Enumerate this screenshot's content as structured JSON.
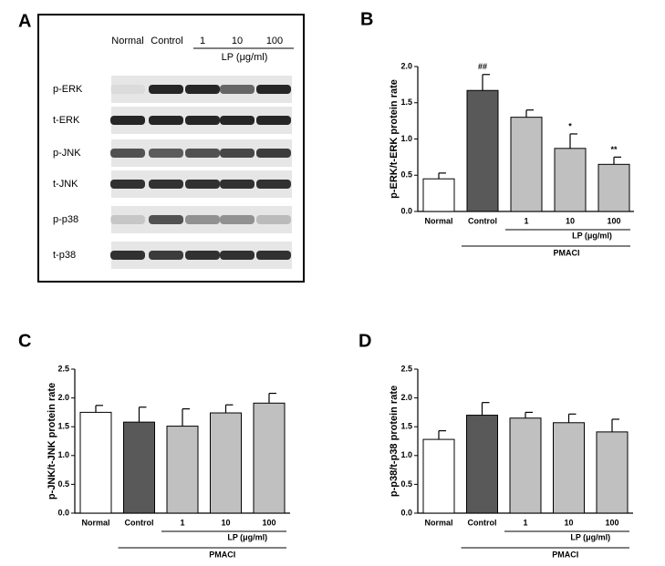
{
  "blot": {
    "panel": "A",
    "lanes": [
      "Normal",
      "Control",
      "1",
      "10",
      "100"
    ],
    "lane_group": "LP (μg/ml)",
    "rows": [
      "p-ERK",
      "t-ERK",
      "p-JNK",
      "t-JNK",
      "p-p38",
      "t-p38"
    ]
  },
  "chart_data": [
    {
      "type": "bar",
      "panel": "B",
      "ylabel": "p-ERK/t-ERK protein rate",
      "categories": [
        "Normal",
        "Control",
        "1",
        "10",
        "100"
      ],
      "values": [
        0.45,
        1.67,
        1.3,
        0.87,
        0.65
      ],
      "errors": [
        0.08,
        0.22,
        0.1,
        0.2,
        0.1
      ],
      "annotations": [
        null,
        "##",
        null,
        "*",
        "**"
      ],
      "colors": [
        "#ffffff",
        "#595959",
        "#c0c0c0",
        "#c0c0c0",
        "#c0c0c0"
      ],
      "group_labels": [
        "LP (μg/ml)",
        "PMACI"
      ],
      "ylim": [
        0,
        2.0
      ],
      "yticks": [
        {
          "value": 0,
          "label": "0.0"
        },
        {
          "value": 0.5,
          "label": "0.5"
        },
        {
          "value": 1,
          "label": "1.0"
        },
        {
          "value": 1.5,
          "label": "1.5"
        },
        {
          "value": 2,
          "label": "2.0"
        }
      ]
    },
    {
      "type": "bar",
      "panel": "C",
      "ylabel": "p-JNK/t-JNK protein rate",
      "categories": [
        "Normal",
        "Control",
        "1",
        "10",
        "100"
      ],
      "values": [
        1.75,
        1.58,
        1.51,
        1.74,
        1.91
      ],
      "errors": [
        0.12,
        0.26,
        0.3,
        0.14,
        0.17
      ],
      "colors": [
        "#ffffff",
        "#595959",
        "#c0c0c0",
        "#c0c0c0",
        "#c0c0c0"
      ],
      "group_labels": [
        "LP (μg/ml)",
        "PMACI"
      ],
      "ylim": [
        0,
        2.5
      ],
      "yticks": [
        {
          "value": 0,
          "label": "0.0"
        },
        {
          "value": 0.5,
          "label": "0.5"
        },
        {
          "value": 1,
          "label": "1.0"
        },
        {
          "value": 1.5,
          "label": "1.5"
        },
        {
          "value": 2,
          "label": "2.0"
        },
        {
          "value": 2.5,
          "label": "2.5"
        }
      ]
    },
    {
      "type": "bar",
      "panel": "D",
      "ylabel": "p-p38/t-p38 protein rate",
      "categories": [
        "Normal",
        "Control",
        "1",
        "10",
        "100"
      ],
      "values": [
        1.28,
        1.7,
        1.65,
        1.57,
        1.41
      ],
      "errors": [
        0.15,
        0.22,
        0.1,
        0.15,
        0.22
      ],
      "colors": [
        "#ffffff",
        "#595959",
        "#c0c0c0",
        "#c0c0c0",
        "#c0c0c0"
      ],
      "group_labels": [
        "LP (μg/ml)",
        "PMACI"
      ],
      "ylim": [
        0,
        2.5
      ],
      "yticks": [
        {
          "value": 0,
          "label": "0.0"
        },
        {
          "value": 0.5,
          "label": "0.5"
        },
        {
          "value": 1,
          "label": "1.0"
        },
        {
          "value": 1.5,
          "label": "1.5"
        },
        {
          "value": 2,
          "label": "2.0"
        },
        {
          "value": 2.5,
          "label": "2.5"
        }
      ]
    }
  ]
}
